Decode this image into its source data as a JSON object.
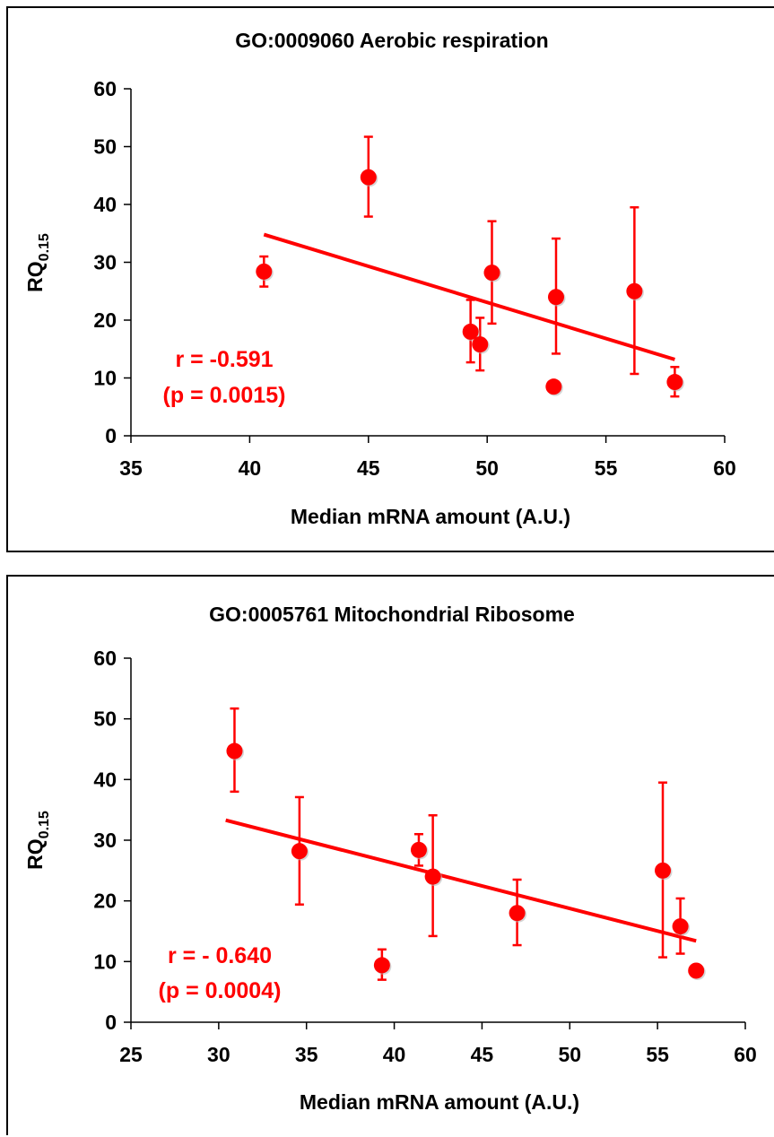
{
  "chart_data": [
    {
      "type": "scatter",
      "title": "GO:0009060  Aerobic respiration",
      "xlabel": "Median mRNA amount (A.U.)",
      "ylabel_main": "RQ",
      "ylabel_sub": "0.15",
      "xlim": [
        35,
        60
      ],
      "ylim": [
        0,
        60
      ],
      "xticks": [
        35,
        40,
        45,
        50,
        55,
        60
      ],
      "yticks": [
        0,
        10,
        20,
        30,
        40,
        50,
        60
      ],
      "xtick_labels": [
        "35",
        "40",
        "45",
        "50",
        "55",
        "60"
      ],
      "ytick_labels": [
        "0",
        "10",
        "20",
        "30",
        "40",
        "50",
        "60"
      ],
      "color": "#ff0000",
      "points": [
        {
          "x": 40.6,
          "y": 28.4,
          "err_low": 2.6,
          "err_high": 2.6
        },
        {
          "x": 45.0,
          "y": 44.7,
          "err_low": 6.8,
          "err_high": 7.0
        },
        {
          "x": 49.3,
          "y": 18.0,
          "err_low": 5.3,
          "err_high": 5.5
        },
        {
          "x": 49.7,
          "y": 15.8,
          "err_low": 4.5,
          "err_high": 4.6
        },
        {
          "x": 50.2,
          "y": 28.2,
          "err_low": 8.8,
          "err_high": 8.9
        },
        {
          "x": 52.8,
          "y": 8.5,
          "err_low": 0,
          "err_high": 0
        },
        {
          "x": 52.9,
          "y": 24.0,
          "err_low": 9.8,
          "err_high": 10.1
        },
        {
          "x": 56.2,
          "y": 25.0,
          "err_low": 14.3,
          "err_high": 14.5
        },
        {
          "x": 57.9,
          "y": 9.3,
          "err_low": 2.5,
          "err_high": 2.6
        }
      ],
      "trendline": {
        "x": [
          40.6,
          57.9
        ],
        "y": [
          34.8,
          13.2
        ]
      },
      "annotation": {
        "line1": "r = -0.591",
        "line2": "(p = 0.0015)"
      }
    },
    {
      "type": "scatter",
      "title": "GO:0005761  Mitochondrial Ribosome",
      "xlabel": "Median mRNA amount (A.U.)",
      "ylabel_main": "RQ",
      "ylabel_sub": "0.15",
      "xlim": [
        25,
        60
      ],
      "ylim": [
        0,
        60
      ],
      "xticks": [
        25,
        30,
        35,
        40,
        45,
        50,
        55,
        60
      ],
      "yticks": [
        0,
        10,
        20,
        30,
        40,
        50,
        60
      ],
      "xtick_labels": [
        "25",
        "30",
        "35",
        "40",
        "45",
        "50",
        "55",
        "60"
      ],
      "ytick_labels": [
        "0",
        "10",
        "20",
        "30",
        "40",
        "50",
        "60"
      ],
      "color": "#ff0000",
      "points": [
        {
          "x": 30.9,
          "y": 44.7,
          "err_low": 6.7,
          "err_high": 7.0
        },
        {
          "x": 34.6,
          "y": 28.2,
          "err_low": 8.8,
          "err_high": 8.9
        },
        {
          "x": 39.3,
          "y": 9.4,
          "err_low": 2.4,
          "err_high": 2.6
        },
        {
          "x": 41.4,
          "y": 28.4,
          "err_low": 2.6,
          "err_high": 2.6
        },
        {
          "x": 42.2,
          "y": 24.0,
          "err_low": 9.8,
          "err_high": 10.1
        },
        {
          "x": 47.0,
          "y": 18.0,
          "err_low": 5.3,
          "err_high": 5.5
        },
        {
          "x": 55.3,
          "y": 25.0,
          "err_low": 14.3,
          "err_high": 14.5
        },
        {
          "x": 56.3,
          "y": 15.8,
          "err_low": 4.5,
          "err_high": 4.6
        },
        {
          "x": 57.2,
          "y": 8.5,
          "err_low": 0,
          "err_high": 0
        }
      ],
      "trendline": {
        "x": [
          30.4,
          57.2
        ],
        "y": [
          33.3,
          13.4
        ]
      },
      "annotation": {
        "line1": "r = - 0.640",
        "line2": "(p = 0.0004)"
      }
    }
  ]
}
